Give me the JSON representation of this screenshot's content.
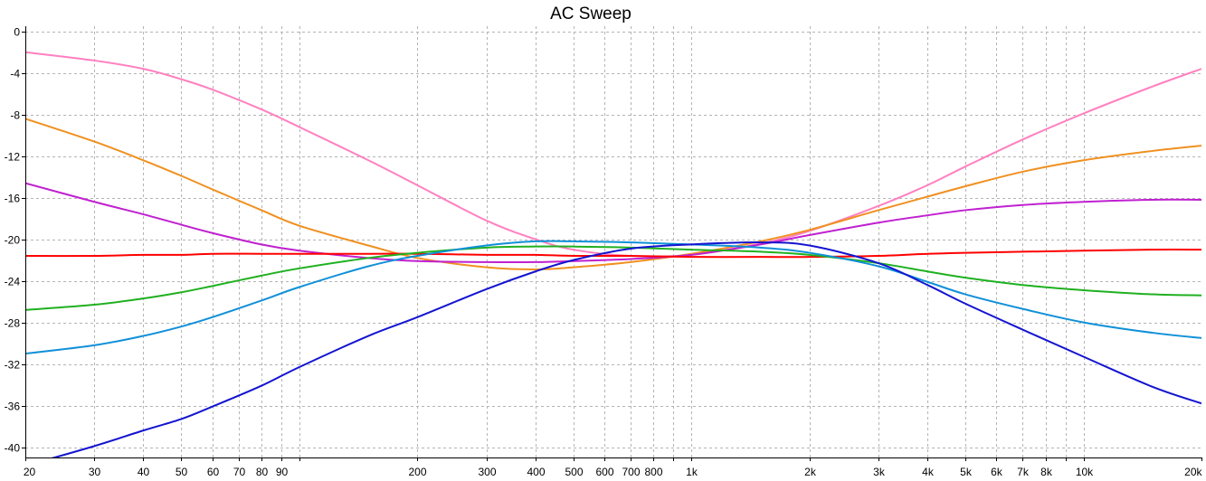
{
  "chart_data": {
    "type": "line",
    "title": "AC Sweep",
    "xlabel": "",
    "ylabel": "",
    "x_scale": "log",
    "xlim": [
      20,
      20000
    ],
    "ylim": [
      -41,
      0.5
    ],
    "grid": true,
    "legend": "none",
    "x_ticks": [
      {
        "value": 20,
        "label": "20"
      },
      {
        "value": 30,
        "label": "30"
      },
      {
        "value": 40,
        "label": "40"
      },
      {
        "value": 50,
        "label": "50"
      },
      {
        "value": 60,
        "label": "60"
      },
      {
        "value": 70,
        "label": "70"
      },
      {
        "value": 80,
        "label": "80"
      },
      {
        "value": 90,
        "label": "90"
      },
      {
        "value": 100,
        "label": ""
      },
      {
        "value": 200,
        "label": "200"
      },
      {
        "value": 300,
        "label": "300"
      },
      {
        "value": 400,
        "label": "400"
      },
      {
        "value": 500,
        "label": "500"
      },
      {
        "value": 600,
        "label": "600"
      },
      {
        "value": 700,
        "label": "700"
      },
      {
        "value": 800,
        "label": "800"
      },
      {
        "value": 900,
        "label": ""
      },
      {
        "value": 1000,
        "label": "1k"
      },
      {
        "value": 2000,
        "label": "2k"
      },
      {
        "value": 3000,
        "label": "3k"
      },
      {
        "value": 4000,
        "label": "4k"
      },
      {
        "value": 5000,
        "label": "5k"
      },
      {
        "value": 6000,
        "label": "6k"
      },
      {
        "value": 7000,
        "label": "7k"
      },
      {
        "value": 8000,
        "label": "8k"
      },
      {
        "value": 9000,
        "label": ""
      },
      {
        "value": 10000,
        "label": "10k"
      },
      {
        "value": 20000,
        "label": "20k"
      }
    ],
    "y_ticks": [
      {
        "value": 0,
        "label": "0"
      },
      {
        "value": -4,
        "label": "-4"
      },
      {
        "value": -8,
        "label": "-8"
      },
      {
        "value": -12,
        "label": "-12"
      },
      {
        "value": -16,
        "label": "-16"
      },
      {
        "value": -20,
        "label": "-20"
      },
      {
        "value": -24,
        "label": "-24"
      },
      {
        "value": -28,
        "label": "-28"
      },
      {
        "value": -32,
        "label": "-32"
      },
      {
        "value": -36,
        "label": "-36"
      },
      {
        "value": -40,
        "label": "-40"
      }
    ],
    "x": [
      20,
      30,
      40,
      50,
      60,
      80,
      100,
      150,
      200,
      300,
      400,
      500,
      700,
      1000,
      1500,
      2000,
      3000,
      4000,
      5000,
      7000,
      10000,
      15000,
      20000
    ],
    "series": [
      {
        "color": "#ff80c0",
        "values": [
          -2.0,
          -2.8,
          -3.6,
          -4.6,
          -5.6,
          -7.5,
          -9.2,
          -12.4,
          -14.8,
          -18.2,
          -20.0,
          -21.0,
          -21.6,
          -21.5,
          -20.4,
          -19.2,
          -16.8,
          -14.8,
          -13.0,
          -10.4,
          -7.9,
          -5.3,
          -3.6
        ]
      },
      {
        "color": "#f09020",
        "values": [
          -8.4,
          -10.6,
          -12.4,
          -13.9,
          -15.2,
          -17.2,
          -18.7,
          -20.6,
          -21.8,
          -22.7,
          -22.9,
          -22.7,
          -22.2,
          -21.4,
          -20.2,
          -19.1,
          -17.2,
          -15.9,
          -14.9,
          -13.5,
          -12.4,
          -11.5,
          -11.0
        ]
      },
      {
        "color": "#c020d0",
        "values": [
          -14.6,
          -16.4,
          -17.6,
          -18.6,
          -19.4,
          -20.5,
          -21.1,
          -21.8,
          -22.1,
          -22.2,
          -22.2,
          -22.1,
          -21.9,
          -21.5,
          -20.5,
          -19.6,
          -18.4,
          -17.7,
          -17.2,
          -16.7,
          -16.4,
          -16.2,
          -16.2
        ]
      },
      {
        "color": "#ff0000",
        "values": [
          -21.6,
          -21.6,
          -21.5,
          -21.5,
          -21.4,
          -21.4,
          -21.4,
          -21.4,
          -21.4,
          -21.5,
          -21.5,
          -21.6,
          -21.6,
          -21.7,
          -21.7,
          -21.7,
          -21.6,
          -21.4,
          -21.3,
          -21.2,
          -21.1,
          -21.0,
          -21.0
        ]
      },
      {
        "color": "#20b020",
        "values": [
          -26.8,
          -26.3,
          -25.7,
          -25.1,
          -24.5,
          -23.5,
          -22.8,
          -21.8,
          -21.3,
          -20.8,
          -20.7,
          -20.7,
          -20.8,
          -21.0,
          -21.2,
          -21.5,
          -22.3,
          -23.1,
          -23.7,
          -24.4,
          -24.9,
          -25.3,
          -25.4
        ]
      },
      {
        "color": "#1090d8",
        "values": [
          -31.0,
          -30.2,
          -29.3,
          -28.4,
          -27.5,
          -25.9,
          -24.6,
          -22.6,
          -21.6,
          -20.6,
          -20.2,
          -20.2,
          -20.3,
          -20.5,
          -20.8,
          -21.3,
          -22.6,
          -24.1,
          -25.3,
          -26.7,
          -28.0,
          -29.0,
          -29.5
        ]
      },
      {
        "color": "#1414d0",
        "values": [
          -41.8,
          -39.9,
          -38.4,
          -37.3,
          -36.1,
          -34.1,
          -32.3,
          -29.3,
          -27.5,
          -24.8,
          -23.1,
          -22.0,
          -20.9,
          -20.5,
          -20.3,
          -20.6,
          -22.3,
          -24.4,
          -26.2,
          -28.7,
          -31.3,
          -34.2,
          -35.8
        ]
      }
    ]
  }
}
